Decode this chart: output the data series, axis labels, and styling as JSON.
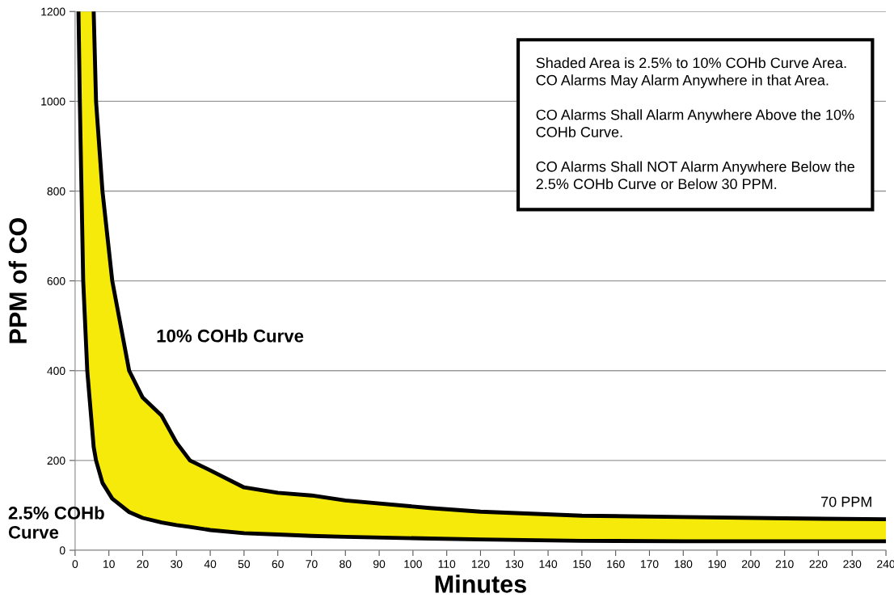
{
  "chart_data": {
    "type": "line",
    "xlabel": "Minutes",
    "ylabel": "PPM of CO",
    "xlim": [
      0,
      240
    ],
    "xticks": [
      0,
      10,
      20,
      30,
      40,
      50,
      60,
      70,
      80,
      90,
      100,
      110,
      120,
      130,
      140,
      150,
      160,
      170,
      180,
      190,
      200,
      210,
      220,
      230,
      240
    ],
    "ylim": [
      0,
      1200
    ],
    "yticks": [
      0,
      200,
      400,
      600,
      800,
      1000,
      1200
    ],
    "grid": "y",
    "marker": "none",
    "line_style": "solid",
    "series": [
      {
        "color": "#000000",
        "x": [
          5.5,
          6.2,
          8.1,
          11,
          16,
          20,
          25.6,
          30,
          34,
          40,
          50,
          60,
          70,
          80,
          105,
          120,
          150,
          180,
          210,
          240
        ],
        "values": [
          1200,
          1000,
          800,
          600,
          400,
          340,
          300,
          240,
          200,
          178,
          140,
          128,
          122,
          111,
          94,
          86,
          77,
          74,
          71,
          69
        ]
      },
      {
        "color": "#000000",
        "x": [
          1,
          1.4,
          1.9,
          2.4,
          3.6,
          5.5,
          6.2,
          8.1,
          11,
          16,
          20,
          25.6,
          30,
          34,
          40,
          50,
          60,
          70,
          80,
          105,
          120,
          150,
          180,
          210,
          240
        ],
        "values": [
          1200,
          1000,
          800,
          600,
          400,
          230,
          200,
          150,
          115,
          85,
          72,
          62,
          56,
          52,
          45,
          38,
          35,
          32,
          30,
          26,
          24,
          21,
          20,
          20,
          20
        ],
        "lower": [
          1200,
          1000,
          800,
          600,
          400,
          230,
          200,
          150,
          115,
          85,
          72,
          62,
          56,
          52,
          45,
          38,
          35,
          32,
          30,
          26,
          24,
          21,
          20,
          20,
          20
        ],
        "upper": [
          1200,
          1200,
          1200,
          1200,
          1200,
          1200,
          1000,
          800,
          600,
          400,
          340,
          300,
          240,
          200,
          178,
          140,
          128,
          122,
          111,
          94,
          86,
          77,
          74,
          71,
          69
        ]
      }
    ],
    "annotations": [
      "Shaded Area is 2.5% to 10% COHb Curve Area.\nCO Alarms May Alarm Anywhere in that Area.\n\nCO Alarms Shall Alarm Anywhere Above the 10%\nCOHb Curve.\n\nCO Alarms Shall NOT Alarm Anywhere Below the\n2.5% COHb Curve or Below 30 PPM.",
      "2.5% COHb\nCurve",
      "10% COHb Curve",
      {
        "text": "70 PPM",
        "x": 240,
        "y": 70
      }
    ]
  }
}
